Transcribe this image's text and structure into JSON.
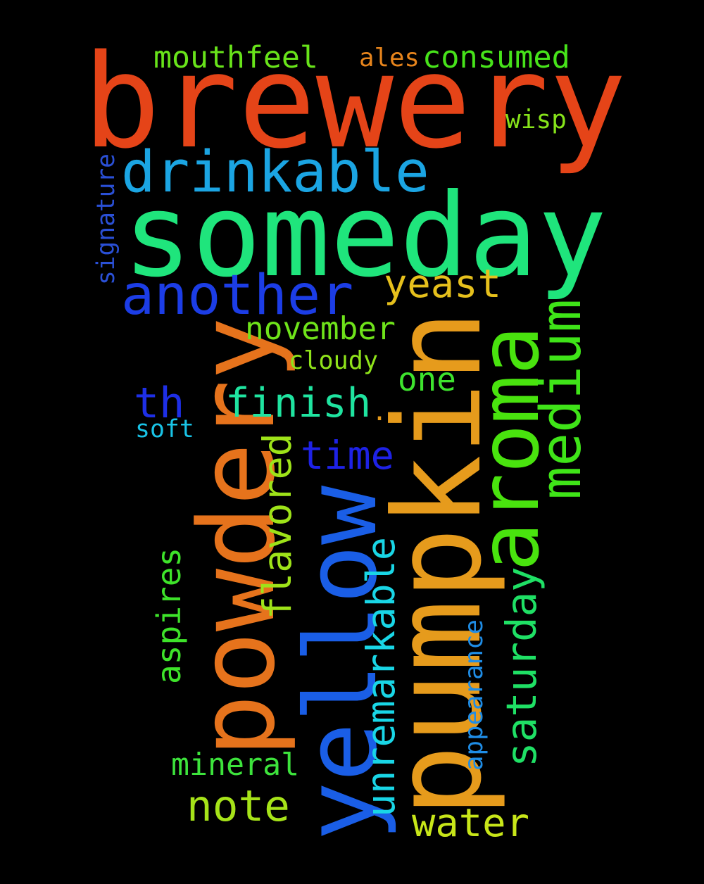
{
  "words": [
    {
      "key": "brewery",
      "text": "brewery",
      "color": "#e54418",
      "vertical": false
    },
    {
      "key": "someday",
      "text": "someday",
      "color": "#1fe57c",
      "vertical": false
    },
    {
      "key": "pumpkin",
      "text": "pumpkin",
      "color": "#e69b1c",
      "vertical": true
    },
    {
      "key": "powdery",
      "text": "powdery",
      "color": "#e6731c",
      "vertical": true
    },
    {
      "key": "yellow",
      "text": "yellow",
      "color": "#1a5ee6",
      "vertical": true
    },
    {
      "key": "aroma",
      "text": "aroma",
      "color": "#49e30e",
      "vertical": true
    },
    {
      "key": "drinkable",
      "text": "drinkable",
      "color": "#1ba5e3",
      "vertical": false
    },
    {
      "key": "another",
      "text": "another",
      "color": "#1c3de6",
      "vertical": false
    },
    {
      "key": "medium",
      "text": "medium",
      "color": "#3fe418",
      "vertical": true
    },
    {
      "key": "yeast",
      "text": "yeast",
      "color": "#e6c01c",
      "vertical": false
    },
    {
      "key": "finish",
      "text": "finish",
      "color": "#1fe4a0",
      "vertical": false
    },
    {
      "key": "unremarkable",
      "text": "unremarkable",
      "color": "#19d6e6",
      "vertical": true
    },
    {
      "key": "saturday",
      "text": "saturday",
      "color": "#1fe065",
      "vertical": true
    },
    {
      "key": "flavored",
      "text": "flavored",
      "color": "#9ee319",
      "vertical": true
    },
    {
      "key": "note",
      "text": "note",
      "color": "#a6e319",
      "vertical": false
    },
    {
      "key": "water",
      "text": "water",
      "color": "#c8e619",
      "vertical": false
    },
    {
      "key": "time",
      "text": "time",
      "color": "#1e22e6",
      "vertical": false
    },
    {
      "key": "th",
      "text": "th",
      "color": "#1e2fe6",
      "vertical": false
    },
    {
      "key": "november",
      "text": "november",
      "color": "#6fe31a",
      "vertical": false
    },
    {
      "key": "aspires",
      "text": "aspires",
      "color": "#3ee32a",
      "vertical": true
    },
    {
      "key": "mineral",
      "text": "mineral",
      "color": "#3de33c",
      "vertical": false
    },
    {
      "key": "mouthfeel",
      "text": "mouthfeel",
      "color": "#68e31a",
      "vertical": false
    },
    {
      "key": "consumed",
      "text": "consumed",
      "color": "#47e31a",
      "vertical": false
    },
    {
      "key": "one",
      "text": "one",
      "color": "#3ee32e",
      "vertical": false
    },
    {
      "key": "cloudy",
      "text": "cloudy",
      "color": "#8fe31a",
      "vertical": false
    },
    {
      "key": "wisp",
      "text": "wisp",
      "color": "#86e31a",
      "vertical": false
    },
    {
      "key": "signature",
      "text": "signature",
      "color": "#2a50d6",
      "vertical": true
    },
    {
      "key": "appearance",
      "text": "appearance",
      "color": "#1f8de6",
      "vertical": true
    },
    {
      "key": "ales",
      "text": "ales",
      "color": "#e6841c",
      "vertical": false
    },
    {
      "key": "soft",
      "text": "soft",
      "color": "#19c3e6",
      "vertical": false
    },
    {
      "key": "dot",
      "text": ".",
      "color": "#e69b1c",
      "vertical": false
    }
  ]
}
